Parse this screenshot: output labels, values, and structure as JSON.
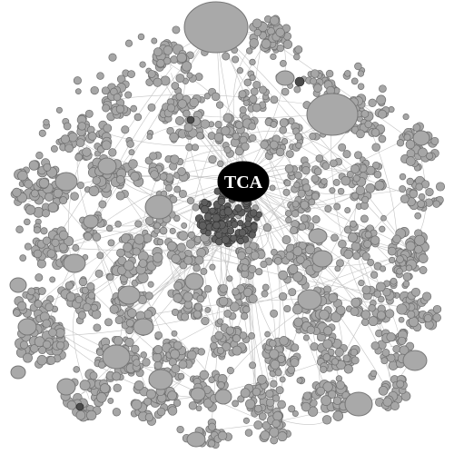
{
  "network": {
    "center_label": "TCA",
    "colors": {
      "node_fill": "#a6a6a6",
      "node_stroke": "#6f6f6f",
      "edge": "#c4c4c4",
      "core_fill": "#5f5f5f",
      "center_fill": "#000000",
      "center_text": "#ffffff"
    }
  }
}
